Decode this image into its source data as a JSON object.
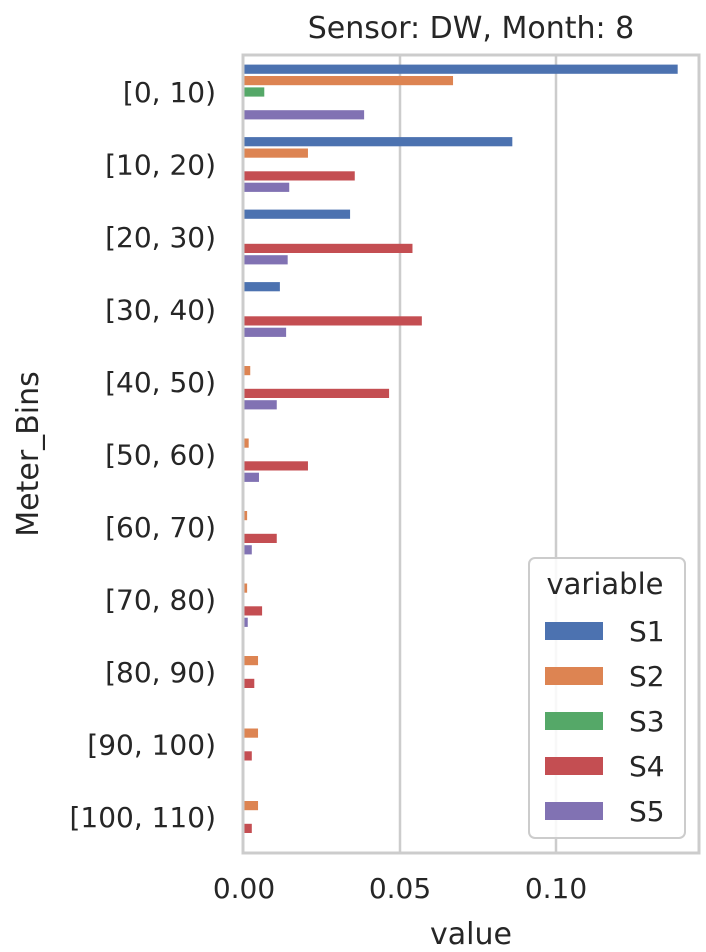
{
  "chart_data": {
    "type": "bar",
    "orientation": "horizontal",
    "title": "Sensor: DW, Month: 8",
    "xlabel": "value",
    "ylabel": "Meter_Bins",
    "xlim": [
      0,
      0.145
    ],
    "xticks": [
      0.0,
      0.05,
      0.1
    ],
    "xtick_labels": [
      "0.00",
      "0.05",
      "0.10"
    ],
    "grid": "vertical",
    "legend_title": "variable",
    "legend_position": "bottom-right",
    "categories": [
      "[0, 10)",
      "[10, 20)",
      "[20, 30)",
      "[30, 40)",
      "[40, 50)",
      "[50, 60)",
      "[60, 70)",
      "[70, 80)",
      "[80, 90)",
      "[90, 100)",
      "[100, 110)"
    ],
    "series": [
      {
        "name": "S1",
        "color": "#4c72b0",
        "values": [
          0.139,
          0.086,
          0.034,
          0.0115,
          0,
          0,
          0,
          0,
          0,
          0,
          0
        ]
      },
      {
        "name": "S2",
        "color": "#dd8452",
        "values": [
          0.067,
          0.0205,
          0,
          0,
          0.002,
          0.0015,
          0.001,
          0.001,
          0.0045,
          0.0045,
          0.0045
        ]
      },
      {
        "name": "S3",
        "color": "#55a868",
        "values": [
          0.0065,
          0,
          0,
          0,
          0,
          0,
          0,
          0,
          0,
          0,
          0
        ]
      },
      {
        "name": "S4",
        "color": "#c44e52",
        "values": [
          0,
          0.0355,
          0.054,
          0.057,
          0.0465,
          0.0205,
          0.0105,
          0.0058,
          0.0033,
          0.0025,
          0.0025
        ]
      },
      {
        "name": "S5",
        "color": "#8172b3",
        "values": [
          0.0385,
          0.0145,
          0.014,
          0.0135,
          0.0105,
          0.0048,
          0.0025,
          0.0012,
          0,
          0,
          0
        ]
      }
    ]
  }
}
